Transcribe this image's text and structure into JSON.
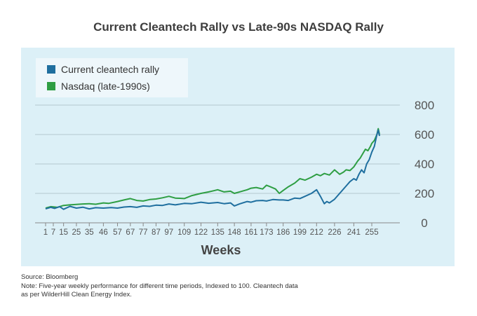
{
  "title": "Current Cleantech Rally vs Late-90s NASDAQ Rally",
  "legend": {
    "cleantech": "Current cleantech rally",
    "nasdaq": "Nasdaq (late-1990s)"
  },
  "colors": {
    "cleantech": "#1f6f9f",
    "nasdaq": "#2e9e43",
    "panel": "#dcf0f7",
    "grid": "#b5c7cf"
  },
  "notes": {
    "source": "Source: Bloomberg",
    "note1": "Note: Five-year weekly performance for different time periods, Indexed to 100. Cleantech data",
    "note2": "as per WilderHill Clean Energy Index."
  },
  "chart_data": {
    "type": "line",
    "title": "Current Cleantech Rally vs Late-90s NASDAQ Rally",
    "xlabel": "Weeks",
    "ylabel": "",
    "xlim": [
      1,
      261
    ],
    "ylim": [
      0,
      800
    ],
    "yticks": [
      0,
      200,
      400,
      600,
      800
    ],
    "xticks": [
      1,
      7,
      15,
      25,
      35,
      46,
      57,
      67,
      77,
      87,
      97,
      109,
      122,
      135,
      148,
      161,
      173,
      186,
      199,
      212,
      226,
      241,
      255
    ],
    "grid": "horizontal",
    "series": [
      {
        "name": "Current cleantech rally",
        "color": "#1f6f9f",
        "x": [
          1,
          5,
          8,
          12,
          15,
          20,
          25,
          30,
          35,
          40,
          46,
          52,
          57,
          62,
          67,
          72,
          77,
          82,
          87,
          92,
          97,
          102,
          109,
          115,
          122,
          128,
          135,
          140,
          145,
          148,
          152,
          158,
          161,
          165,
          170,
          173,
          178,
          183,
          186,
          190,
          195,
          199,
          203,
          208,
          212,
          215,
          218,
          220,
          222,
          226,
          230,
          235,
          238,
          241,
          243,
          245,
          247,
          249,
          251,
          253,
          255,
          257,
          259,
          260,
          261
        ],
        "y": [
          95,
          105,
          98,
          110,
          92,
          112,
          100,
          106,
          95,
          103,
          100,
          104,
          100,
          107,
          110,
          105,
          115,
          112,
          120,
          118,
          128,
          122,
          132,
          130,
          140,
          133,
          138,
          130,
          135,
          115,
          128,
          145,
          140,
          150,
          152,
          148,
          158,
          155,
          155,
          152,
          168,
          165,
          180,
          200,
          225,
          180,
          130,
          145,
          135,
          160,
          200,
          250,
          280,
          300,
          290,
          330,
          360,
          340,
          400,
          430,
          480,
          520,
          600,
          630,
          590
        ]
      },
      {
        "name": "Nasdaq (late-1990s)",
        "color": "#2e9e43",
        "x": [
          1,
          5,
          10,
          15,
          20,
          25,
          30,
          35,
          40,
          46,
          50,
          57,
          62,
          67,
          72,
          77,
          82,
          87,
          92,
          97,
          102,
          109,
          115,
          122,
          128,
          132,
          135,
          140,
          145,
          148,
          152,
          158,
          161,
          165,
          170,
          173,
          176,
          180,
          183,
          186,
          190,
          195,
          199,
          203,
          208,
          212,
          215,
          218,
          222,
          226,
          230,
          233,
          235,
          238,
          241,
          244,
          246,
          248,
          250,
          252,
          254,
          255,
          257,
          259,
          260,
          261
        ],
        "y": [
          100,
          110,
          105,
          118,
          122,
          125,
          128,
          130,
          126,
          135,
          132,
          145,
          155,
          165,
          152,
          148,
          158,
          162,
          170,
          180,
          168,
          165,
          185,
          200,
          210,
          218,
          225,
          210,
          215,
          200,
          210,
          225,
          235,
          240,
          230,
          255,
          245,
          230,
          200,
          220,
          245,
          270,
          300,
          290,
          310,
          330,
          320,
          335,
          325,
          360,
          330,
          345,
          360,
          355,
          380,
          420,
          440,
          470,
          500,
          490,
          520,
          540,
          560,
          600,
          640,
          600
        ]
      }
    ]
  }
}
